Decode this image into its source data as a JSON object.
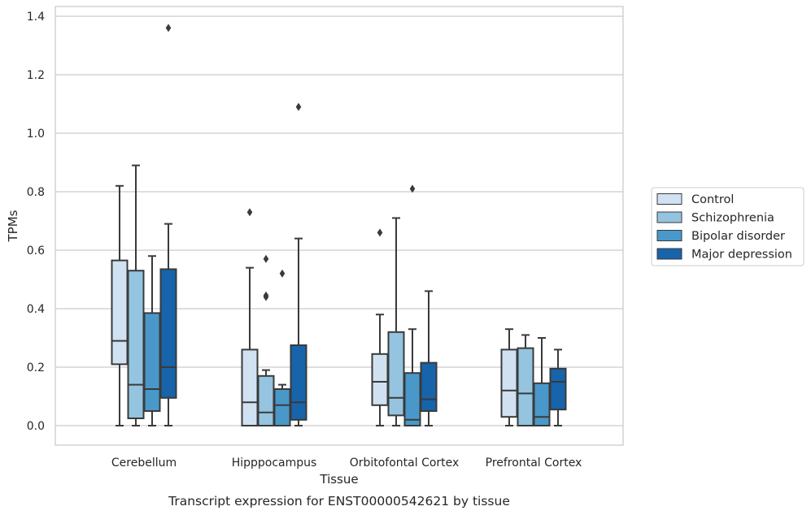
{
  "chart_data": {
    "type": "boxplot",
    "title": "",
    "caption": "Transcript expression for ENST00000542621 by tissue",
    "xlabel": "Tissue",
    "ylabel": "TPMs",
    "ylim": [
      -0.065,
      1.43
    ],
    "yticks": [
      0.0,
      0.2,
      0.4,
      0.6,
      0.8,
      1.0,
      1.2,
      1.4
    ],
    "ytick_labels": [
      "0.0",
      "0.2",
      "0.4",
      "0.6",
      "0.8",
      "1.0",
      "1.2",
      "1.4"
    ],
    "grid": "horizontal",
    "legend_position": "right",
    "categories": [
      "Cerebellum",
      "Hipppocampus",
      "Orbitofontal Cortex",
      "Prefrontal Cortex"
    ],
    "series": [
      {
        "name": "Control",
        "color": "#d0e1f2",
        "boxes": [
          {
            "whislo": 0.0,
            "q1": 0.21,
            "med": 0.29,
            "q3": 0.565,
            "whishi": 0.82,
            "fliers": []
          },
          {
            "whislo": 0.0,
            "q1": 0.0,
            "med": 0.08,
            "q3": 0.26,
            "whishi": 0.54,
            "fliers": [
              0.73
            ]
          },
          {
            "whislo": 0.0,
            "q1": 0.07,
            "med": 0.15,
            "q3": 0.245,
            "whishi": 0.38,
            "fliers": [
              0.66
            ]
          },
          {
            "whislo": 0.0,
            "q1": 0.03,
            "med": 0.12,
            "q3": 0.26,
            "whishi": 0.33,
            "fliers": []
          }
        ]
      },
      {
        "name": "Schizophrenia",
        "color": "#94c4df",
        "boxes": [
          {
            "whislo": 0.0,
            "q1": 0.025,
            "med": 0.14,
            "q3": 0.53,
            "whishi": 0.89,
            "fliers": []
          },
          {
            "whislo": 0.0,
            "q1": 0.0,
            "med": 0.045,
            "q3": 0.17,
            "whishi": 0.19,
            "fliers": [
              0.57,
              0.44,
              0.445
            ]
          },
          {
            "whislo": 0.0,
            "q1": 0.035,
            "med": 0.095,
            "q3": 0.32,
            "whishi": 0.71,
            "fliers": []
          },
          {
            "whislo": 0.0,
            "q1": 0.0,
            "med": 0.11,
            "q3": 0.265,
            "whishi": 0.31,
            "fliers": []
          }
        ]
      },
      {
        "name": "Bipolar disorder",
        "color": "#4a98c9",
        "boxes": [
          {
            "whislo": 0.0,
            "q1": 0.05,
            "med": 0.125,
            "q3": 0.385,
            "whishi": 0.58,
            "fliers": []
          },
          {
            "whislo": 0.0,
            "q1": 0.0,
            "med": 0.07,
            "q3": 0.125,
            "whishi": 0.14,
            "fliers": [
              0.52
            ]
          },
          {
            "whislo": 0.0,
            "q1": 0.0,
            "med": 0.02,
            "q3": 0.18,
            "whishi": 0.33,
            "fliers": [
              0.81
            ]
          },
          {
            "whislo": 0.0,
            "q1": 0.0,
            "med": 0.03,
            "q3": 0.145,
            "whishi": 0.3,
            "fliers": []
          }
        ]
      },
      {
        "name": "Major depression",
        "color": "#1764ab",
        "boxes": [
          {
            "whislo": 0.0,
            "q1": 0.095,
            "med": 0.2,
            "q3": 0.535,
            "whishi": 0.69,
            "fliers": [
              1.36
            ]
          },
          {
            "whislo": 0.0,
            "q1": 0.02,
            "med": 0.08,
            "q3": 0.275,
            "whishi": 0.64,
            "fliers": [
              1.09
            ]
          },
          {
            "whislo": 0.0,
            "q1": 0.05,
            "med": 0.09,
            "q3": 0.215,
            "whishi": 0.46,
            "fliers": []
          },
          {
            "whislo": 0.0,
            "q1": 0.055,
            "med": 0.15,
            "q3": 0.195,
            "whishi": 0.26,
            "fliers": []
          }
        ]
      }
    ]
  }
}
